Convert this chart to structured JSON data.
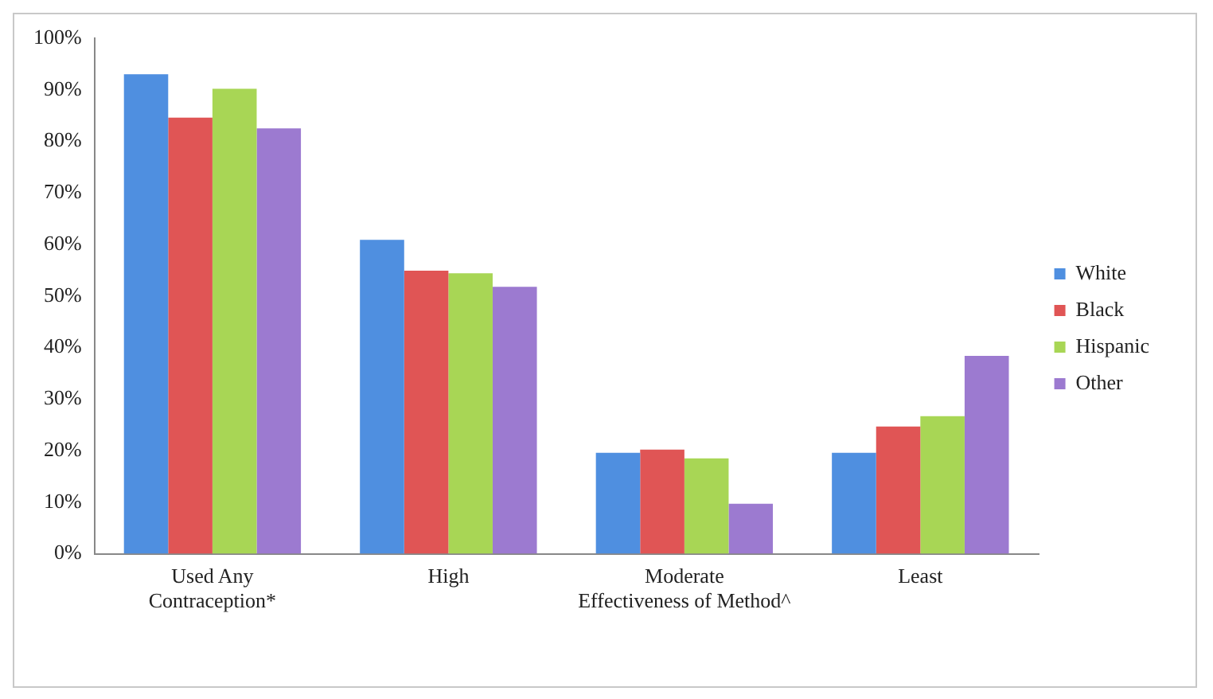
{
  "chart_data": {
    "type": "bar",
    "categories": [
      "Used Any\nContraception*",
      "High",
      "Moderate\nEffectiveness of Method^",
      "Least"
    ],
    "series": [
      {
        "name": "White",
        "color": "#4f8fe0",
        "values": [
          93.0,
          60.9,
          19.6,
          19.6
        ]
      },
      {
        "name": "Black",
        "color": "#e05555",
        "values": [
          84.6,
          54.9,
          20.2,
          24.7
        ]
      },
      {
        "name": "Hispanic",
        "color": "#a8d655",
        "values": [
          90.2,
          54.4,
          18.5,
          26.7
        ]
      },
      {
        "name": "Other",
        "color": "#9c7ad0",
        "values": [
          82.5,
          51.8,
          9.7,
          38.4
        ]
      }
    ],
    "ylim": [
      0,
      100
    ],
    "yticks": [
      {
        "value": 0,
        "label": "0%"
      },
      {
        "value": 10,
        "label": "10%"
      },
      {
        "value": 20,
        "label": "20%"
      },
      {
        "value": 30,
        "label": "30%"
      },
      {
        "value": 40,
        "label": "40%"
      },
      {
        "value": 50,
        "label": "50%"
      },
      {
        "value": 60,
        "label": "60%"
      },
      {
        "value": 70,
        "label": "70%"
      },
      {
        "value": 80,
        "label": "80%"
      },
      {
        "value": 90,
        "label": "90%"
      },
      {
        "value": 100,
        "label": "100%"
      }
    ],
    "grid": false,
    "legend": "right"
  }
}
